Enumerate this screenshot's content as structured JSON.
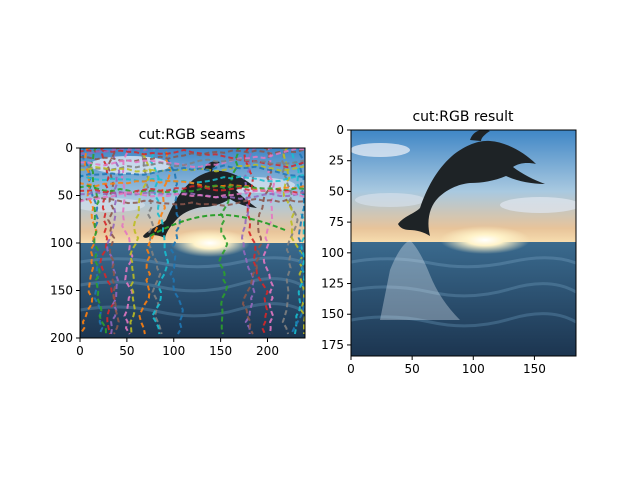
{
  "chart_data": [
    {
      "type": "image",
      "title": "cut:RGB seams",
      "xlim": [
        0,
        240
      ],
      "ylim": [
        200,
        0
      ],
      "x_ticks": [
        0,
        50,
        100,
        150,
        200
      ],
      "y_ticks": [
        0,
        50,
        100,
        150,
        200
      ],
      "image_content": "dolphin leaping over ocean at sunset, overlaid with colored dashed seam lines"
    },
    {
      "type": "image",
      "title": "cut:RGB result",
      "xlim": [
        0,
        184
      ],
      "ylim": [
        184,
        0
      ],
      "x_ticks": [
        0,
        50,
        100,
        150
      ],
      "y_ticks": [
        0,
        25,
        50,
        75,
        100,
        125,
        150,
        175
      ],
      "image_content": "seam-carved dolphin image"
    }
  ],
  "colors": {
    "sky_top": "#4f93cc",
    "sky_mid": "#a9c9e0",
    "horizon": "#f5c98a",
    "sun": "#fff6d6",
    "sea_top": "#2d5a7c",
    "sea_bottom": "#1c3550",
    "dolphin": "#1e2326",
    "seam_colors": [
      "#1f77b4",
      "#ff7f0e",
      "#2ca02c",
      "#d62728",
      "#9467bd",
      "#8c564b",
      "#e377c2",
      "#7f7f7f",
      "#bcbd22",
      "#17becf"
    ]
  }
}
